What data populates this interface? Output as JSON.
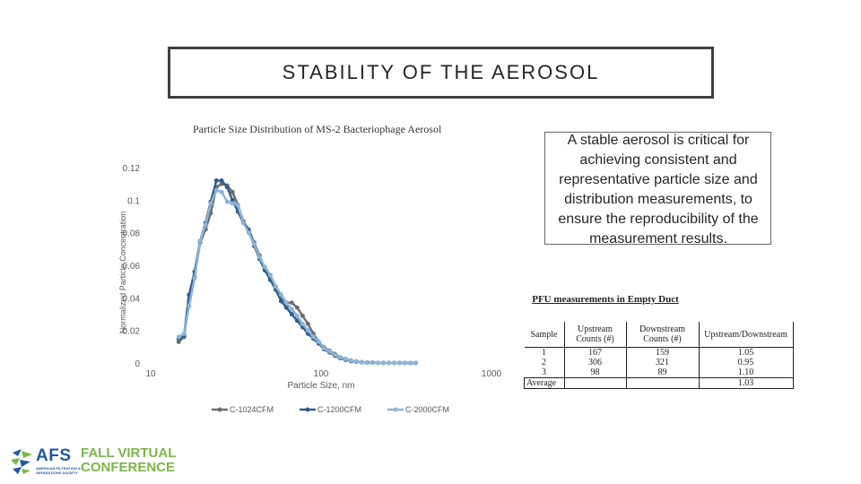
{
  "slide": {
    "title": "STABILITY OF THE AEROSOL",
    "description": "A stable aerosol is critical for achieving consistent and representative particle size and distribution measurements, to ensure the reproducibility of the measurement results."
  },
  "chart_data": {
    "type": "line",
    "title": "Particle Size Distribution of MS-2 Bacteriophage Aerosol",
    "xlabel": "Particle Size, nm",
    "ylabel": "Normalized Particle Concentration",
    "x_scale": "log",
    "xlim": [
      10,
      1000
    ],
    "ylim": [
      0,
      0.12
    ],
    "x_ticks": [
      "10",
      "100",
      "1000"
    ],
    "y_ticks": [
      "0",
      "0.02",
      "0.04",
      "0.06",
      "0.08",
      "0.1",
      "0.12"
    ],
    "grid": false,
    "legend": "bottom",
    "series": [
      {
        "name": "C-1024CFM",
        "color": "#6e6e6e",
        "x": [
          14.6,
          15.7,
          16.8,
          18.1,
          19.5,
          21.0,
          22.5,
          24.3,
          26.1,
          28.1,
          30.2,
          32.5,
          35.0,
          37.6,
          40.5,
          43.5,
          46.8,
          50.4,
          54.2,
          58.3,
          62.6,
          67.3,
          72.4,
          77.9,
          83.8,
          90.1,
          96.9,
          104.2,
          112.1,
          120.5,
          129.6,
          139.4,
          149.9,
          161.3,
          173.5,
          186.6,
          200.7,
          215.8,
          232.1,
          249.6,
          268.6,
          288.7,
          310.6,
          334.0,
          359.5
        ],
        "y": [
          0.013,
          0.016,
          0.038,
          0.053,
          0.074,
          0.082,
          0.092,
          0.108,
          0.11,
          0.109,
          0.105,
          0.097,
          0.087,
          0.082,
          0.074,
          0.066,
          0.058,
          0.052,
          0.046,
          0.04,
          0.037,
          0.037,
          0.034,
          0.029,
          0.024,
          0.018,
          0.013,
          0.0095,
          0.0075,
          0.0055,
          0.0035,
          0.0025,
          0.0015,
          0.001,
          0.0005,
          0.0003,
          0.0002,
          0.0001,
          0.0001,
          0.0001,
          0.0001,
          0.0001,
          0.0,
          0.0,
          0.0
        ]
      },
      {
        "name": "C-1200CFM",
        "color": "#2e5e8e",
        "x": [
          14.6,
          15.7,
          16.8,
          18.1,
          19.5,
          21.0,
          22.5,
          24.3,
          26.1,
          28.1,
          30.2,
          32.5,
          35.0,
          37.6,
          40.5,
          43.5,
          46.8,
          50.4,
          54.2,
          58.3,
          62.6,
          67.3,
          72.4,
          77.9,
          83.8,
          90.1,
          96.9,
          104.2,
          112.1,
          120.5,
          129.6,
          139.4,
          149.9,
          161.3,
          173.5,
          186.6,
          200.7,
          215.8,
          232.1,
          249.6,
          268.6,
          288.7,
          310.6,
          334.0,
          359.5
        ],
        "y": [
          0.015,
          0.017,
          0.042,
          0.056,
          0.075,
          0.086,
          0.099,
          0.112,
          0.112,
          0.108,
          0.1,
          0.093,
          0.086,
          0.081,
          0.072,
          0.064,
          0.057,
          0.051,
          0.045,
          0.038,
          0.034,
          0.03,
          0.026,
          0.022,
          0.018,
          0.015,
          0.012,
          0.0085,
          0.0065,
          0.0045,
          0.003,
          0.002,
          0.0012,
          0.0008,
          0.0004,
          0.0003,
          0.0002,
          0.0001,
          0.0001,
          0.0001,
          0.0001,
          0.0001,
          0.0,
          0.0,
          0.0
        ]
      },
      {
        "name": "C-2000CFM",
        "color": "#8cb4d8",
        "x": [
          14.6,
          15.7,
          16.8,
          18.1,
          19.5,
          21.0,
          22.5,
          24.3,
          26.1,
          28.1,
          30.2,
          32.5,
          35.0,
          37.6,
          40.5,
          43.5,
          46.8,
          50.4,
          54.2,
          58.3,
          62.6,
          67.3,
          72.4,
          77.9,
          83.8,
          90.1,
          96.9,
          104.2,
          112.1,
          120.5,
          129.6,
          139.4,
          149.9,
          161.3,
          173.5,
          186.6,
          200.7,
          215.8,
          232.1,
          249.6,
          268.6,
          288.7,
          310.6,
          334.0,
          359.5
        ],
        "y": [
          0.016,
          0.018,
          0.035,
          0.052,
          0.075,
          0.085,
          0.098,
          0.106,
          0.105,
          0.099,
          0.098,
          0.097,
          0.086,
          0.08,
          0.073,
          0.065,
          0.059,
          0.054,
          0.047,
          0.042,
          0.037,
          0.033,
          0.029,
          0.024,
          0.02,
          0.016,
          0.013,
          0.009,
          0.007,
          0.005,
          0.0035,
          0.0025,
          0.0015,
          0.001,
          0.0005,
          0.0003,
          0.0002,
          0.0001,
          0.0001,
          0.0001,
          0.0001,
          0.0001,
          0.0,
          0.0,
          0.0
        ]
      }
    ]
  },
  "table": {
    "caption": "PFU measurements in Empty Duct",
    "headers": [
      "Sample",
      "Upstream Counts (#)",
      "Downstream Counts (#)",
      "Upstream/Downstream"
    ],
    "rows": [
      [
        "1",
        "167",
        "159",
        "1.05"
      ],
      [
        "2",
        "306",
        "321",
        "0.95"
      ],
      [
        "3",
        "98",
        "89",
        "1.10"
      ]
    ],
    "footer_label": "Average",
    "footer_value": "1.03"
  },
  "logo": {
    "brand": "AFS",
    "small_text": "AMERICAN FILTRATION & SEPARATIONS SOCIETY",
    "conf_line1": "FALL VIRTUAL",
    "conf_line2": "CONFERENCE"
  },
  "colors": {
    "logo_blue": "#1f5aa6",
    "logo_green": "#7ab648"
  }
}
